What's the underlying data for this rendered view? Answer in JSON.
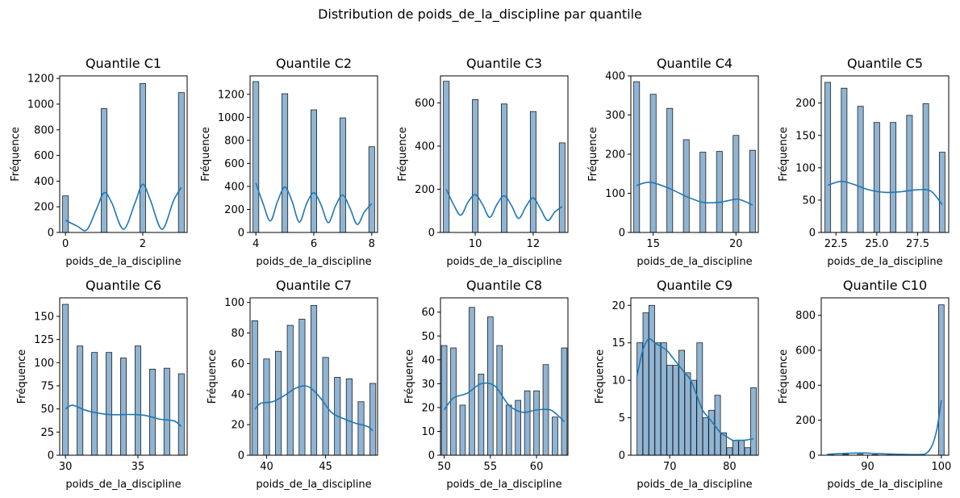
{
  "figure": {
    "title": "Distribution de poids_de_la_discipline par quantile"
  },
  "colors": {
    "bar_fill": "#8fb4d4",
    "bar_edge": "#1f1f1f",
    "kde_line": "#1f77b4"
  },
  "chart_data": [
    {
      "type": "bar",
      "title": "Quantile C1",
      "xlabel": "poids_de_la_discipline",
      "ylabel": "Fréquence",
      "xlim": [
        -0.15,
        3.15
      ],
      "ylim": [
        0,
        1220
      ],
      "xticks": [
        0,
        2
      ],
      "yticks": [
        0,
        200,
        400,
        600,
        800,
        1000,
        1200
      ],
      "bar_width": 0.15,
      "bars": [
        [
          0,
          285
        ],
        [
          1,
          965
        ],
        [
          2,
          1160
        ],
        [
          3,
          1090
        ]
      ],
      "kde": [
        [
          0,
          95
        ],
        [
          0.3,
          50
        ],
        [
          0.55,
          20
        ],
        [
          0.8,
          180
        ],
        [
          1,
          310
        ],
        [
          1.2,
          230
        ],
        [
          1.5,
          25
        ],
        [
          1.8,
          230
        ],
        [
          2,
          375
        ],
        [
          2.2,
          250
        ],
        [
          2.5,
          25
        ],
        [
          2.8,
          250
        ],
        [
          3,
          350
        ]
      ]
    },
    {
      "type": "bar",
      "title": "Quantile C2",
      "xlabel": "poids_de_la_discipline",
      "ylabel": "Fréquence",
      "xlim": [
        3.8,
        8.2
      ],
      "ylim": [
        0,
        1360
      ],
      "xticks": [
        4,
        6,
        8
      ],
      "yticks": [
        0,
        200,
        400,
        600,
        800,
        1000,
        1200
      ],
      "bar_width": 0.2,
      "bars": [
        [
          4,
          1310
        ],
        [
          5,
          1205
        ],
        [
          6,
          1065
        ],
        [
          7,
          995
        ],
        [
          8,
          745
        ]
      ],
      "kde": [
        [
          4,
          430
        ],
        [
          4.25,
          250
        ],
        [
          4.5,
          100
        ],
        [
          4.75,
          270
        ],
        [
          5,
          395
        ],
        [
          5.25,
          270
        ],
        [
          5.5,
          90
        ],
        [
          5.75,
          250
        ],
        [
          6,
          345
        ],
        [
          6.25,
          240
        ],
        [
          6.5,
          85
        ],
        [
          6.75,
          230
        ],
        [
          7,
          325
        ],
        [
          7.25,
          210
        ],
        [
          7.5,
          70
        ],
        [
          7.75,
          180
        ],
        [
          8,
          250
        ]
      ]
    },
    {
      "type": "bar",
      "title": "Quantile C3",
      "xlabel": "poids_de_la_discipline",
      "ylabel": "Fréquence",
      "xlim": [
        8.8,
        13.2
      ],
      "ylim": [
        0,
        725
      ],
      "xticks": [
        10,
        12
      ],
      "yticks": [
        0,
        200,
        400,
        600
      ],
      "bar_width": 0.2,
      "bars": [
        [
          9,
          700
        ],
        [
          10,
          615
        ],
        [
          11,
          595
        ],
        [
          12,
          560
        ],
        [
          13,
          415
        ]
      ],
      "kde": [
        [
          9,
          200
        ],
        [
          9.25,
          130
        ],
        [
          9.5,
          80
        ],
        [
          9.75,
          140
        ],
        [
          10,
          175
        ],
        [
          10.25,
          130
        ],
        [
          10.5,
          70
        ],
        [
          10.75,
          130
        ],
        [
          11,
          170
        ],
        [
          11.25,
          125
        ],
        [
          11.5,
          65
        ],
        [
          11.75,
          120
        ],
        [
          12,
          160
        ],
        [
          12.25,
          110
        ],
        [
          12.5,
          55
        ],
        [
          12.75,
          95
        ],
        [
          13,
          120
        ]
      ]
    },
    {
      "type": "bar",
      "title": "Quantile C4",
      "xlabel": "poids_de_la_discipline",
      "ylabel": "Fréquence",
      "xlim": [
        13.65,
        21.35
      ],
      "ylim": [
        0,
        400
      ],
      "xticks": [
        15,
        20
      ],
      "yticks": [
        0,
        100,
        200,
        300,
        400
      ],
      "bar_width": 0.35,
      "bars": [
        [
          14,
          385
        ],
        [
          15,
          353
        ],
        [
          16,
          317
        ],
        [
          17,
          237
        ],
        [
          18,
          205
        ],
        [
          19,
          207
        ],
        [
          20,
          248
        ],
        [
          21,
          210
        ]
      ],
      "kde": [
        [
          14,
          120
        ],
        [
          14.5,
          127
        ],
        [
          15,
          127
        ],
        [
          16,
          112
        ],
        [
          17,
          92
        ],
        [
          18,
          77
        ],
        [
          19,
          77
        ],
        [
          20,
          85
        ],
        [
          20.5,
          80
        ],
        [
          21,
          70
        ]
      ]
    },
    {
      "type": "bar",
      "title": "Quantile C5",
      "xlabel": "poids_de_la_discipline",
      "ylabel": "Fréquence",
      "xlim": [
        21.6,
        29.4
      ],
      "ylim": [
        0,
        242
      ],
      "xticks": [
        22.5,
        25.0,
        27.5
      ],
      "yticks": [
        0,
        50,
        100,
        150,
        200
      ],
      "bar_width": 0.35,
      "bars": [
        [
          22,
          232
        ],
        [
          23,
          223
        ],
        [
          24,
          195
        ],
        [
          25,
          170
        ],
        [
          26,
          170
        ],
        [
          27,
          181
        ],
        [
          28,
          199
        ],
        [
          29,
          124
        ]
      ],
      "kde": [
        [
          22,
          73
        ],
        [
          22.8,
          79
        ],
        [
          23.5,
          75
        ],
        [
          24.5,
          66
        ],
        [
          25.5,
          62
        ],
        [
          26.5,
          63
        ],
        [
          27.5,
          66
        ],
        [
          28.3,
          64
        ],
        [
          29,
          43
        ]
      ]
    },
    {
      "type": "bar",
      "title": "Quantile C6",
      "xlabel": "poids_de_la_discipline",
      "ylabel": "Fréquence",
      "xlim": [
        29.6,
        38.4
      ],
      "ylim": [
        0,
        170
      ],
      "xticks": [
        30,
        35
      ],
      "yticks": [
        0,
        25,
        50,
        75,
        100,
        125,
        150
      ],
      "bar_width": 0.4,
      "bars": [
        [
          30,
          163
        ],
        [
          31,
          118
        ],
        [
          32,
          111
        ],
        [
          33,
          111
        ],
        [
          34,
          105
        ],
        [
          35,
          118
        ],
        [
          36,
          93
        ],
        [
          37,
          94
        ],
        [
          38,
          88
        ]
      ],
      "kde": [
        [
          30,
          50
        ],
        [
          30.5,
          54
        ],
        [
          31.5,
          48
        ],
        [
          33,
          44
        ],
        [
          34.5,
          44
        ],
        [
          35.5,
          43
        ],
        [
          36.5,
          39
        ],
        [
          37.5,
          37
        ],
        [
          38,
          31
        ]
      ]
    },
    {
      "type": "bar",
      "title": "Quantile C7",
      "xlabel": "poids_de_la_discipline",
      "ylabel": "Fréquence",
      "xlim": [
        38.6,
        49.4
      ],
      "ylim": [
        0,
        103
      ],
      "xticks": [
        40,
        45
      ],
      "yticks": [
        0,
        20,
        40,
        60,
        80,
        100
      ],
      "bar_width": 0.5,
      "bars": [
        [
          39,
          88
        ],
        [
          40,
          63
        ],
        [
          41,
          68
        ],
        [
          42,
          85
        ],
        [
          43,
          89
        ],
        [
          44,
          98
        ],
        [
          45,
          64
        ],
        [
          46,
          51
        ],
        [
          47,
          50
        ],
        [
          48,
          35
        ],
        [
          49,
          47
        ]
      ],
      "kde": [
        [
          39,
          30
        ],
        [
          39.5,
          34
        ],
        [
          40.5,
          35
        ],
        [
          41.5,
          39
        ],
        [
          42.5,
          44
        ],
        [
          43.5,
          45
        ],
        [
          44.5,
          38
        ],
        [
          45.5,
          28
        ],
        [
          46.5,
          24
        ],
        [
          47.5,
          21
        ],
        [
          48.5,
          19
        ],
        [
          49,
          16
        ]
      ]
    },
    {
      "type": "bar",
      "title": "Quantile C8",
      "xlabel": "poids_de_la_discipline",
      "ylabel": "Fréquence",
      "xlim": [
        49.6,
        63.4
      ],
      "ylim": [
        0,
        66
      ],
      "xticks": [
        50,
        55,
        60
      ],
      "yticks": [
        0,
        10,
        20,
        30,
        40,
        50,
        60
      ],
      "bar_width": 0.6,
      "bars": [
        [
          50,
          46
        ],
        [
          51,
          45
        ],
        [
          52,
          21
        ],
        [
          53,
          62
        ],
        [
          54,
          34
        ],
        [
          55,
          58
        ],
        [
          56,
          46
        ],
        [
          57,
          21
        ],
        [
          58,
          23
        ],
        [
          59,
          27
        ],
        [
          60,
          27
        ],
        [
          61,
          38
        ],
        [
          62,
          16
        ],
        [
          63,
          45
        ]
      ],
      "kde": [
        [
          50,
          19
        ],
        [
          51,
          24
        ],
        [
          52.5,
          26
        ],
        [
          54,
          30
        ],
        [
          55.5,
          29
        ],
        [
          57,
          21
        ],
        [
          58.5,
          18
        ],
        [
          60,
          19
        ],
        [
          61.5,
          19
        ],
        [
          62.5,
          16
        ],
        [
          63,
          14
        ]
      ]
    },
    {
      "type": "bar",
      "title": "Quantile C9",
      "xlabel": "poids_de_la_discipline",
      "ylabel": "Fréquence",
      "xlim": [
        63.5,
        84.8
      ],
      "ylim": [
        0,
        21
      ],
      "xticks": [
        70,
        80
      ],
      "yticks": [
        0,
        5,
        10,
        15,
        20
      ],
      "bar_width": 0.95,
      "bars": [
        [
          65,
          15
        ],
        [
          66,
          19
        ],
        [
          67,
          20
        ],
        [
          68,
          15
        ],
        [
          69,
          15
        ],
        [
          70,
          12
        ],
        [
          71,
          12
        ],
        [
          72,
          14
        ],
        [
          73,
          11
        ],
        [
          74,
          10
        ],
        [
          75,
          15
        ],
        [
          76,
          5
        ],
        [
          77,
          6
        ],
        [
          78,
          8
        ],
        [
          79,
          3
        ],
        [
          80,
          1
        ],
        [
          81,
          2
        ],
        [
          82,
          2
        ],
        [
          83,
          1
        ],
        [
          84,
          9
        ]
      ],
      "kde": [
        [
          64.5,
          10.5
        ],
        [
          65.5,
          14
        ],
        [
          66.5,
          15.5
        ],
        [
          67.5,
          15
        ],
        [
          68.5,
          14.5
        ],
        [
          69.5,
          14
        ],
        [
          70.5,
          13
        ],
        [
          71.5,
          12
        ],
        [
          72.5,
          11
        ],
        [
          73.5,
          10
        ],
        [
          74.5,
          8
        ],
        [
          75.5,
          6
        ],
        [
          76.5,
          5
        ],
        [
          77.5,
          4
        ],
        [
          78.5,
          3
        ],
        [
          79.5,
          2.5
        ],
        [
          80.5,
          2
        ],
        [
          81.5,
          2
        ],
        [
          82.5,
          2
        ],
        [
          84,
          2.2
        ]
      ]
    },
    {
      "type": "bar",
      "title": "Quantile C10",
      "xlabel": "poids_de_la_discipline",
      "ylabel": "Fréquence",
      "xlim": [
        83.7,
        101
      ],
      "ylim": [
        0,
        900
      ],
      "xticks": [
        90,
        100
      ],
      "yticks": [
        0,
        200,
        400,
        600,
        800
      ],
      "bar_width": 0.75,
      "bars": [
        [
          85,
          3
        ],
        [
          87,
          5
        ],
        [
          89,
          6
        ],
        [
          91,
          3
        ],
        [
          93,
          2
        ],
        [
          95,
          2
        ],
        [
          97,
          3
        ],
        [
          100,
          860
        ]
      ],
      "kde": [
        [
          84.5,
          5
        ],
        [
          86,
          9
        ],
        [
          88,
          12
        ],
        [
          89.5,
          13
        ],
        [
          91,
          10
        ],
        [
          93,
          7
        ],
        [
          95,
          5
        ],
        [
          97,
          4
        ],
        [
          98,
          12
        ],
        [
          98.8,
          60
        ],
        [
          99.4,
          150
        ],
        [
          100,
          315
        ]
      ]
    }
  ]
}
